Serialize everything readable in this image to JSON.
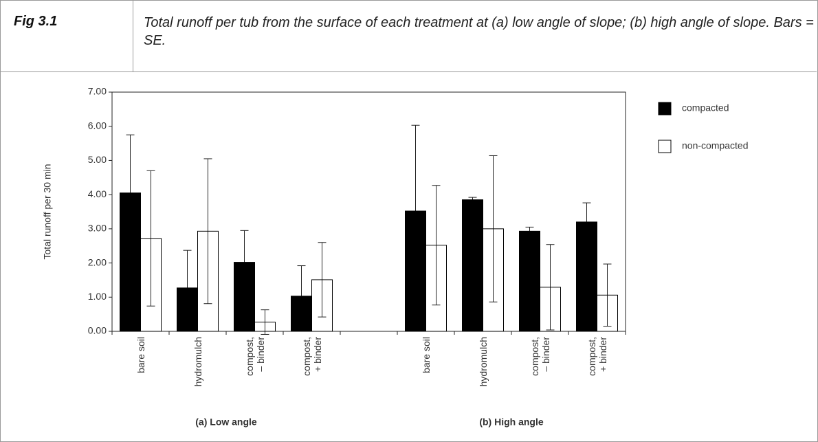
{
  "header": {
    "label": "Fig 3.1",
    "caption": "Total runoff per tub from the surface of each treatment at (a) low angle of slope; (b) high angle of slope.  Bars = SE."
  },
  "chart_data": {
    "type": "bar",
    "y_label": "Total runoff per 30 min",
    "categories": [
      "bare soil",
      "hydromulch",
      "compost,\n– binder",
      "compost,\n+ binder",
      null,
      "bare soil",
      "hydromulch",
      "compost,\n– binder",
      "compost,\n+ binder"
    ],
    "group_labels": [
      "(a) Low angle",
      "(b) High angle"
    ],
    "series": [
      {
        "name": "compacted",
        "color": "#000000",
        "values": [
          4.05,
          1.27,
          2.02,
          1.03,
          null,
          3.52,
          3.85,
          2.93,
          3.2
        ],
        "errors": [
          1.7,
          1.1,
          0.93,
          0.89,
          null,
          2.51,
          0.07,
          0.12,
          0.56
        ]
      },
      {
        "name": "non-compacted",
        "color": "#ffffff",
        "values": [
          2.72,
          2.93,
          0.27,
          1.51,
          null,
          2.52,
          3.0,
          1.29,
          1.06
        ],
        "errors": [
          1.98,
          2.12,
          0.36,
          1.09,
          null,
          1.75,
          2.14,
          1.25,
          0.91
        ]
      }
    ],
    "ylim": [
      0,
      7
    ],
    "yticks": [
      {
        "value": 0,
        "label": "0.00"
      },
      {
        "value": 1,
        "label": "1.00"
      },
      {
        "value": 2,
        "label": "2.00"
      },
      {
        "value": 3,
        "label": "3.00"
      },
      {
        "value": 4,
        "label": "4.00"
      },
      {
        "value": 5,
        "label": "5.00"
      },
      {
        "value": 6,
        "label": "6.00"
      },
      {
        "value": 7,
        "label": "7.00"
      }
    ],
    "legend": "right"
  }
}
